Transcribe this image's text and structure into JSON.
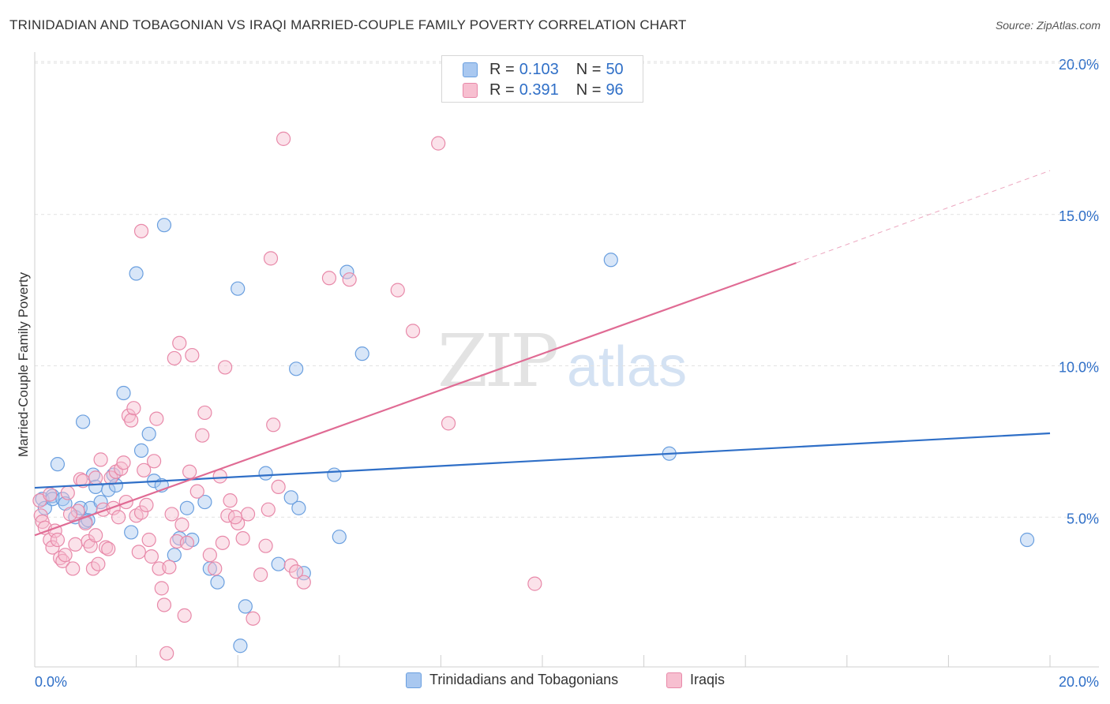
{
  "header": {
    "title": "TRINIDADIAN AND TOBAGONIAN VS IRAQI MARRIED-COUPLE FAMILY POVERTY CORRELATION CHART",
    "source": "Source: ZipAtlas.com"
  },
  "watermark": {
    "zip": "ZIP",
    "atlas": "atlas"
  },
  "legend_top": {
    "rows": [
      {
        "r_label": "R =",
        "r_value": "0.103",
        "n_label": "N =",
        "n_value": "50",
        "color": "#a9c8f0",
        "border": "#6a9fdf"
      },
      {
        "r_label": "R =",
        "r_value": "0.391",
        "n_label": "N =",
        "n_value": "96",
        "color": "#f7bfd0",
        "border": "#e889a9"
      }
    ]
  },
  "legend_bottom": {
    "items": [
      {
        "label": "Trinidadians and Tobagonians",
        "color": "#a9c8f0",
        "border": "#6a9fdf"
      },
      {
        "label": "Iraqis",
        "color": "#f7bfd0",
        "border": "#e889a9"
      }
    ]
  },
  "chart_data": {
    "type": "scatter",
    "title": "TRINIDADIAN AND TOBAGONIAN VS IRAQI MARRIED-COUPLE FAMILY POVERTY CORRELATION CHART",
    "xlabel": "",
    "ylabel": "Married-Couple Family Poverty",
    "xlim": [
      0,
      20
    ],
    "ylim": [
      0,
      20
    ],
    "x_tick_labels": [
      "0.0%",
      "20.0%"
    ],
    "y_ticks": [
      5,
      10,
      15,
      20
    ],
    "y_tick_labels": [
      "5.0%",
      "10.0%",
      "15.0%",
      "20.0%"
    ],
    "grid": true,
    "series": [
      {
        "name": "Trinidadians and Tobagonians",
        "color": "#6a9fdf",
        "fill": "#a9c8f0",
        "line_color": "#2f6fc7",
        "trend": {
          "x0": 0.0,
          "y0": 5.97,
          "x1": 20.0,
          "y1": 7.77,
          "dashed_from": null
        },
        "points": [
          [
            0.15,
            5.6
          ],
          [
            0.2,
            5.3
          ],
          [
            0.35,
            5.7
          ],
          [
            0.35,
            5.6
          ],
          [
            0.45,
            6.75
          ],
          [
            0.55,
            5.6
          ],
          [
            0.6,
            5.45
          ],
          [
            0.8,
            5.0
          ],
          [
            0.9,
            5.3
          ],
          [
            0.95,
            8.15
          ],
          [
            1.0,
            4.85
          ],
          [
            1.05,
            4.9
          ],
          [
            1.1,
            5.3
          ],
          [
            1.15,
            6.4
          ],
          [
            1.2,
            6.0
          ],
          [
            1.3,
            5.5
          ],
          [
            1.45,
            5.9
          ],
          [
            1.55,
            6.4
          ],
          [
            1.6,
            6.05
          ],
          [
            1.75,
            9.1
          ],
          [
            1.9,
            4.5
          ],
          [
            2.0,
            13.05
          ],
          [
            2.1,
            7.2
          ],
          [
            2.25,
            7.75
          ],
          [
            2.35,
            6.2
          ],
          [
            2.5,
            6.05
          ],
          [
            2.55,
            14.65
          ],
          [
            2.75,
            3.75
          ],
          [
            2.85,
            4.3
          ],
          [
            3.0,
            5.3
          ],
          [
            3.1,
            4.25
          ],
          [
            3.35,
            5.5
          ],
          [
            3.45,
            3.3
          ],
          [
            3.6,
            2.85
          ],
          [
            4.0,
            12.55
          ],
          [
            4.05,
            0.75
          ],
          [
            4.15,
            2.05
          ],
          [
            4.55,
            6.45
          ],
          [
            4.8,
            3.45
          ],
          [
            5.05,
            5.65
          ],
          [
            5.15,
            9.9
          ],
          [
            5.3,
            3.15
          ],
          [
            5.9,
            6.4
          ],
          [
            6.0,
            4.35
          ],
          [
            6.15,
            13.1
          ],
          [
            6.45,
            10.4
          ],
          [
            11.35,
            13.5
          ],
          [
            12.5,
            7.1
          ],
          [
            19.55,
            4.25
          ],
          [
            5.2,
            5.3
          ]
        ]
      },
      {
        "name": "Iraqis",
        "color": "#e889a9",
        "fill": "#f7bfd0",
        "line_color": "#e06b94",
        "trend": {
          "x0": 0.0,
          "y0": 4.4,
          "x1": 15.0,
          "y1": 13.4,
          "dashed_from": 15.0,
          "dashed_to_x": 20.0,
          "dashed_to_y": 16.45
        },
        "points": [
          [
            0.1,
            5.55
          ],
          [
            0.12,
            5.05
          ],
          [
            0.15,
            4.85
          ],
          [
            0.2,
            4.65
          ],
          [
            0.3,
            5.75
          ],
          [
            0.3,
            4.25
          ],
          [
            0.35,
            4.0
          ],
          [
            0.4,
            4.55
          ],
          [
            0.45,
            4.25
          ],
          [
            0.5,
            3.65
          ],
          [
            0.55,
            3.55
          ],
          [
            0.6,
            3.75
          ],
          [
            0.65,
            5.8
          ],
          [
            0.75,
            3.3
          ],
          [
            0.8,
            4.1
          ],
          [
            0.85,
            5.2
          ],
          [
            0.9,
            6.25
          ],
          [
            0.95,
            6.2
          ],
          [
            1.0,
            4.8
          ],
          [
            1.05,
            4.2
          ],
          [
            1.1,
            4.05
          ],
          [
            1.15,
            3.3
          ],
          [
            1.2,
            4.4
          ],
          [
            1.25,
            3.45
          ],
          [
            1.3,
            6.9
          ],
          [
            1.35,
            5.25
          ],
          [
            1.4,
            4.0
          ],
          [
            1.45,
            3.95
          ],
          [
            1.5,
            6.3
          ],
          [
            1.55,
            5.3
          ],
          [
            1.6,
            6.5
          ],
          [
            1.65,
            5.0
          ],
          [
            1.7,
            6.6
          ],
          [
            1.75,
            6.8
          ],
          [
            1.8,
            5.5
          ],
          [
            1.85,
            8.35
          ],
          [
            1.9,
            8.2
          ],
          [
            1.95,
            8.6
          ],
          [
            2.0,
            5.05
          ],
          [
            2.05,
            3.85
          ],
          [
            2.1,
            5.15
          ],
          [
            2.15,
            6.55
          ],
          [
            2.2,
            5.4
          ],
          [
            2.25,
            4.25
          ],
          [
            2.3,
            3.7
          ],
          [
            2.35,
            6.85
          ],
          [
            2.4,
            8.25
          ],
          [
            2.45,
            3.3
          ],
          [
            2.5,
            2.65
          ],
          [
            2.55,
            2.1
          ],
          [
            2.6,
            0.5
          ],
          [
            2.65,
            3.35
          ],
          [
            2.7,
            5.1
          ],
          [
            2.75,
            10.25
          ],
          [
            2.8,
            4.2
          ],
          [
            2.85,
            10.75
          ],
          [
            2.9,
            4.75
          ],
          [
            2.95,
            1.75
          ],
          [
            3.0,
            4.15
          ],
          [
            3.05,
            6.5
          ],
          [
            3.1,
            10.35
          ],
          [
            3.2,
            5.85
          ],
          [
            3.3,
            7.7
          ],
          [
            3.35,
            8.45
          ],
          [
            3.45,
            3.75
          ],
          [
            3.55,
            3.3
          ],
          [
            3.65,
            6.35
          ],
          [
            3.7,
            4.15
          ],
          [
            3.75,
            9.95
          ],
          [
            3.8,
            5.05
          ],
          [
            3.85,
            5.55
          ],
          [
            4.0,
            4.8
          ],
          [
            4.1,
            4.3
          ],
          [
            4.2,
            5.1
          ],
          [
            4.3,
            1.65
          ],
          [
            4.45,
            3.1
          ],
          [
            4.55,
            4.05
          ],
          [
            4.6,
            5.25
          ],
          [
            4.65,
            13.55
          ],
          [
            4.7,
            8.05
          ],
          [
            4.8,
            6.0
          ],
          [
            4.9,
            17.5
          ],
          [
            5.05,
            3.4
          ],
          [
            5.15,
            3.2
          ],
          [
            5.3,
            2.85
          ],
          [
            5.8,
            12.9
          ],
          [
            6.2,
            12.85
          ],
          [
            7.15,
            12.5
          ],
          [
            7.45,
            11.15
          ],
          [
            7.95,
            17.35
          ],
          [
            8.15,
            8.1
          ],
          [
            9.85,
            2.8
          ],
          [
            2.1,
            14.45
          ],
          [
            1.2,
            6.3
          ],
          [
            0.7,
            5.1
          ],
          [
            3.95,
            5.0
          ]
        ]
      }
    ]
  }
}
